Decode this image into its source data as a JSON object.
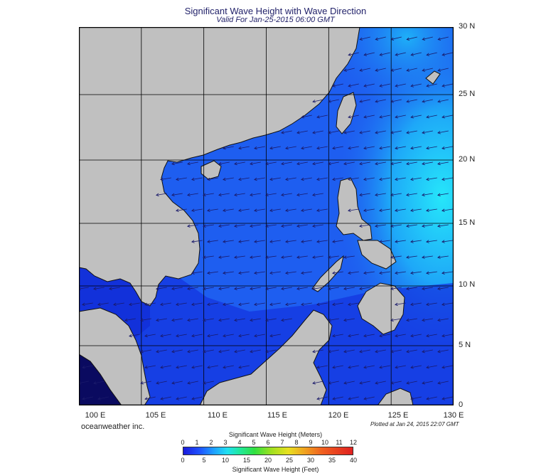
{
  "header": {
    "title": "Significant Wave Height with Wave Direction",
    "subtitle": "Valid For Jan-25-2015 06:00 GMT"
  },
  "map": {
    "lat_labels": [
      "30 N",
      "25 N",
      "20 N",
      "15 N",
      "10 N",
      "5 N",
      "0"
    ],
    "lon_labels": [
      "100 E",
      "105 E",
      "110 E",
      "115 E",
      "120 E",
      "125 E",
      "130 E"
    ],
    "colors": {
      "land": "#c0c0c0",
      "sea_deep": "#1438e0",
      "sea_mid": "#1e66f0",
      "sea_high": "#22d8f8",
      "arrow": "#1a1a6a"
    },
    "wave_direction": "from the northeast"
  },
  "footer": {
    "credit": "oceanweather inc.",
    "plotted": "Plotted at Jan 24, 2015 22:07 GMT"
  },
  "colorbar": {
    "title_meters": "Significant Wave Height (Meters)",
    "title_feet": "Significant Wave Height (Feet)",
    "meters_ticks": [
      "0",
      "1",
      "2",
      "3",
      "4",
      "5",
      "6",
      "7",
      "8",
      "9",
      "10",
      "11",
      "12"
    ],
    "feet_ticks": [
      "0",
      "5",
      "10",
      "15",
      "20",
      "25",
      "30",
      "35",
      "40"
    ]
  }
}
